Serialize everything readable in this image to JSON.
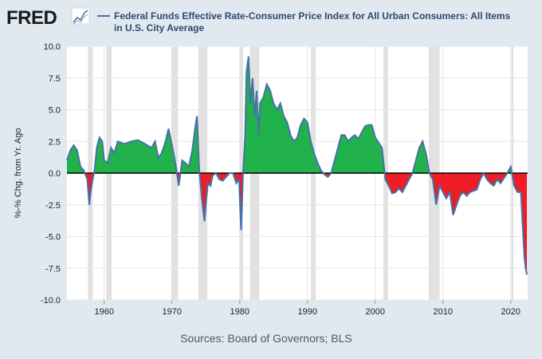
{
  "header": {
    "logo_text": "FRED",
    "legend_line1": "Federal Funds Effective Rate-Consumer Price Index for All Urban Consumers: All Items",
    "legend_line2": "in U.S. City Average",
    "series_color": "#4572a7"
  },
  "footer": {
    "source": "Sources: Board of Governors; BLS"
  },
  "colors": {
    "positive_fill": "#21b24b",
    "negative_fill": "#ee1c25",
    "recession": "#e1e1e1",
    "line": "#4572a7"
  },
  "chart_data": {
    "type": "area",
    "title": "Federal Funds Effective Rate-Consumer Price Index for All Urban Consumers: All Items in U.S. City Average",
    "ylabel": "%-% Chg. from Yr. Ago",
    "xlabel": "",
    "xlim": [
      1954.5,
      2022.5
    ],
    "ylim": [
      -10,
      10
    ],
    "yticks": [
      10.0,
      7.5,
      5.0,
      2.5,
      0.0,
      -2.5,
      -5.0,
      -7.5,
      -10.0
    ],
    "ytick_labels": [
      "10.0",
      "7.5",
      "5.0",
      "2.5",
      "0.0",
      "-2.5",
      "-5.0",
      "-7.5",
      "-10.0"
    ],
    "xticks": [
      1960,
      1970,
      1980,
      1990,
      2000,
      2010,
      2020
    ],
    "xtick_labels": [
      "1960",
      "1970",
      "1980",
      "1990",
      "2000",
      "2010",
      "2020"
    ],
    "recessions": [
      [
        1957.6,
        1958.3
      ],
      [
        1960.3,
        1961.1
      ],
      [
        1969.9,
        1970.9
      ],
      [
        1973.9,
        1975.2
      ],
      [
        1980.0,
        1980.5
      ],
      [
        1981.5,
        1982.9
      ],
      [
        1990.5,
        1991.2
      ],
      [
        2001.2,
        2001.9
      ],
      [
        2007.9,
        2009.5
      ],
      [
        2020.1,
        2020.4
      ]
    ],
    "series": [
      {
        "name": "Federal Funds Effective Rate-Consumer Price Index for All Urban Consumers: All Items in U.S. City Average",
        "x": [
          1954.5,
          1955.0,
          1955.5,
          1956.0,
          1956.5,
          1957.0,
          1957.5,
          1957.8,
          1958.0,
          1958.3,
          1958.6,
          1958.9,
          1959.3,
          1959.7,
          1960.0,
          1960.5,
          1961.0,
          1961.5,
          1962.0,
          1963.0,
          1964.0,
          1965.0,
          1966.0,
          1967.0,
          1967.5,
          1968.0,
          1968.5,
          1969.0,
          1969.5,
          1970.0,
          1970.5,
          1971.0,
          1971.5,
          1972.0,
          1972.5,
          1973.0,
          1973.4,
          1973.7,
          1974.0,
          1974.4,
          1974.8,
          1975.0,
          1975.3,
          1975.7,
          1976.0,
          1976.5,
          1977.0,
          1977.5,
          1978.0,
          1978.5,
          1979.0,
          1979.5,
          1979.9,
          1980.2,
          1980.5,
          1980.8,
          1981.0,
          1981.3,
          1981.6,
          1981.9,
          1982.2,
          1982.5,
          1982.8,
          1983.0,
          1983.5,
          1984.0,
          1984.5,
          1985.0,
          1985.5,
          1986.0,
          1986.5,
          1987.0,
          1987.5,
          1988.0,
          1988.5,
          1989.0,
          1989.5,
          1990.0,
          1990.5,
          1991.0,
          1991.5,
          1992.0,
          1992.5,
          1993.0,
          1993.5,
          1994.0,
          1994.5,
          1995.0,
          1995.5,
          1996.0,
          1996.5,
          1997.0,
          1997.5,
          1998.0,
          1998.5,
          1999.0,
          1999.5,
          2000.0,
          2000.5,
          2001.0,
          2001.5,
          2002.0,
          2002.5,
          2003.0,
          2003.5,
          2004.0,
          2004.5,
          2005.0,
          2005.5,
          2006.0,
          2006.5,
          2007.0,
          2007.5,
          2008.0,
          2008.5,
          2009.0,
          2009.5,
          2010.0,
          2010.5,
          2011.0,
          2011.5,
          2012.0,
          2012.5,
          2013.0,
          2013.5,
          2014.0,
          2014.5,
          2015.0,
          2015.5,
          2016.0,
          2016.5,
          2017.0,
          2017.5,
          2018.0,
          2018.5,
          2019.0,
          2019.5,
          2020.0,
          2020.5,
          2021.0,
          2021.5,
          2021.8,
          2022.0,
          2022.2,
          2022.4
        ],
        "values": [
          1.0,
          1.8,
          2.2,
          1.8,
          0.5,
          0.2,
          -0.5,
          -2.5,
          -1.5,
          -0.5,
          0.3,
          2.0,
          2.8,
          2.5,
          1.0,
          0.8,
          2.0,
          1.6,
          2.5,
          2.3,
          2.5,
          2.6,
          2.3,
          2.0,
          2.5,
          1.2,
          1.6,
          2.4,
          3.5,
          2.2,
          0.8,
          -1.0,
          1.0,
          0.8,
          0.5,
          1.8,
          3.5,
          4.5,
          0.5,
          -2.0,
          -3.8,
          -2.5,
          -0.8,
          -1.0,
          -0.2,
          0.0,
          -0.5,
          -0.6,
          -0.3,
          0.0,
          0.0,
          -0.8,
          -0.5,
          -4.5,
          0.0,
          3.0,
          8.0,
          9.2,
          5.5,
          7.5,
          4.5,
          6.5,
          3.0,
          5.5,
          6.0,
          7.0,
          6.5,
          5.5,
          5.0,
          5.5,
          4.5,
          4.0,
          3.0,
          2.5,
          2.8,
          3.8,
          4.3,
          4.0,
          2.5,
          1.5,
          0.8,
          0.2,
          -0.1,
          -0.3,
          0.0,
          1.0,
          2.0,
          3.0,
          3.0,
          2.5,
          2.8,
          3.0,
          2.7,
          3.2,
          3.7,
          3.8,
          3.8,
          2.8,
          2.4,
          2.0,
          -0.5,
          -1.0,
          -1.6,
          -1.5,
          -1.2,
          -1.5,
          -1.0,
          -0.5,
          0.0,
          1.0,
          2.0,
          2.5,
          1.5,
          0.0,
          -0.5,
          -2.5,
          -1.0,
          -1.5,
          -2.0,
          -1.5,
          -3.3,
          -2.5,
          -1.8,
          -1.5,
          -1.8,
          -1.5,
          -1.4,
          -1.3,
          -0.5,
          0.0,
          -0.5,
          -0.8,
          -1.0,
          -0.5,
          -0.8,
          -0.4,
          0.0,
          0.5,
          -1.0,
          -1.5,
          -1.5,
          -4.5,
          -6.5,
          -7.5,
          -8.0
        ]
      }
    ]
  }
}
